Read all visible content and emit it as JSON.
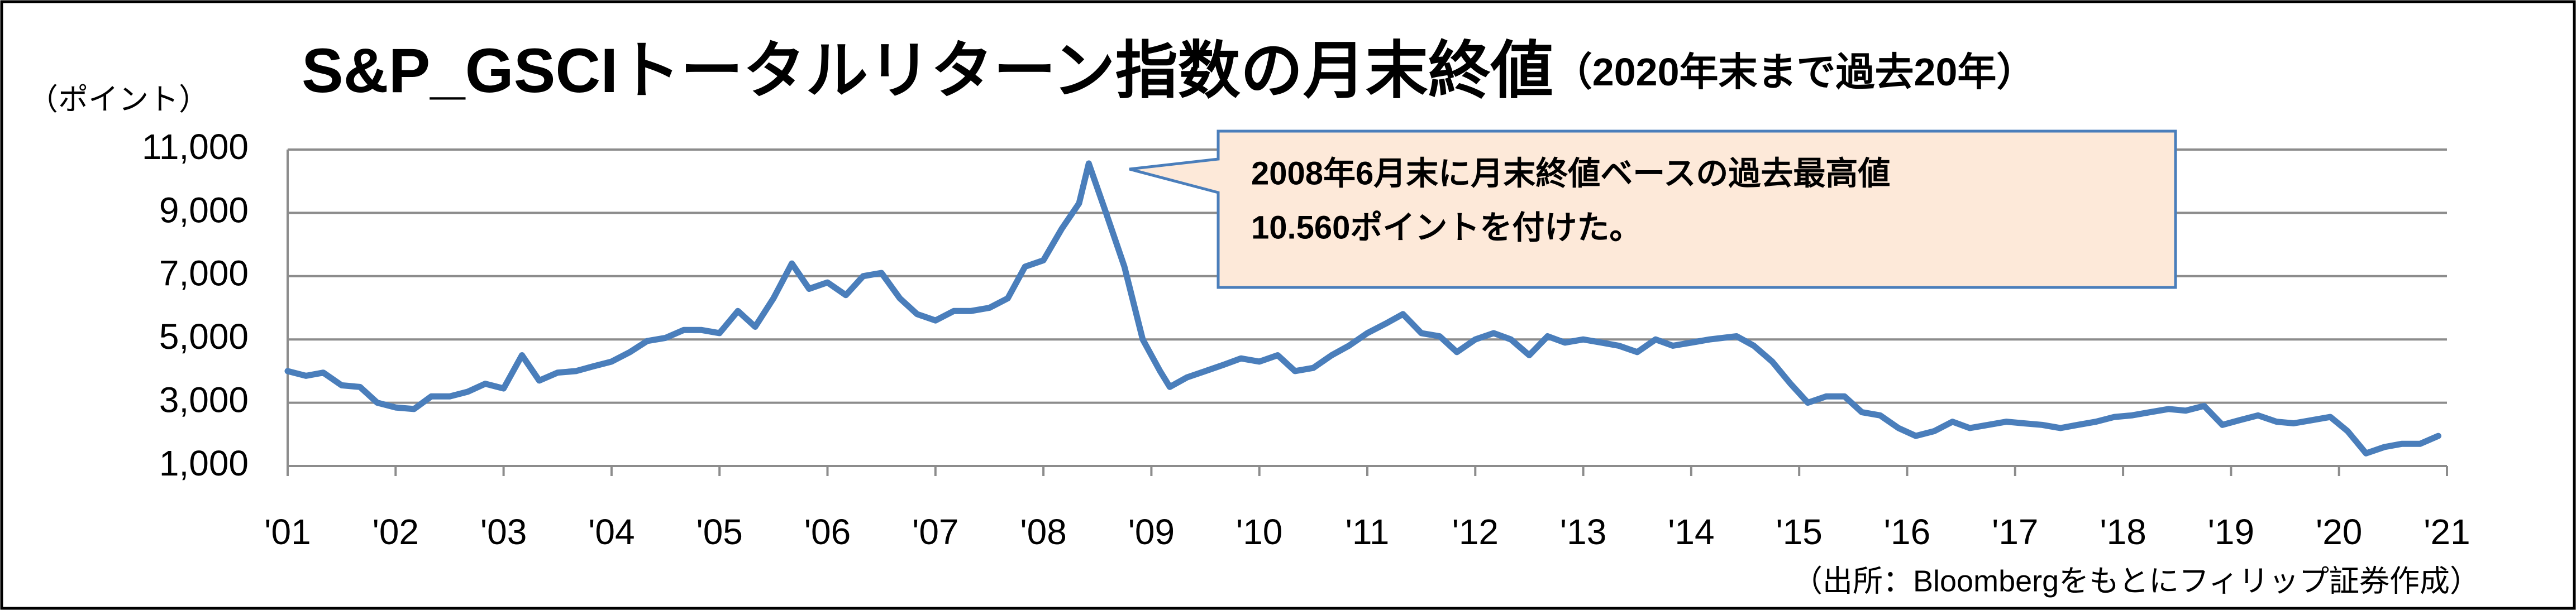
{
  "chart_data": {
    "type": "line",
    "title": "S&P_GSCIトータルリターン指数の月末終値",
    "subtitle": "（2020年末まで過去20年）",
    "y_label": "（ポイント）",
    "source": "（出所：Bloombergをもとにフィリップ証券作成）",
    "annotations": [
      "2008年6月末に月末終値ベースの過去最高値",
      "10.560ポイントを付けた。"
    ],
    "color": "#4a7ebb",
    "grid": true,
    "x": [
      2001.0,
      2001.17,
      2001.33,
      2001.5,
      2001.67,
      2001.83,
      2002.0,
      2002.17,
      2002.33,
      2002.5,
      2002.67,
      2002.83,
      2003.0,
      2003.17,
      2003.33,
      2003.5,
      2003.67,
      2003.83,
      2004.0,
      2004.17,
      2004.33,
      2004.5,
      2004.67,
      2004.83,
      2005.0,
      2005.17,
      2005.33,
      2005.5,
      2005.67,
      2005.83,
      2006.0,
      2006.17,
      2006.33,
      2006.5,
      2006.67,
      2006.83,
      2007.0,
      2007.17,
      2007.33,
      2007.5,
      2007.67,
      2007.83,
      2008.0,
      2008.17,
      2008.33,
      2008.42,
      2008.58,
      2008.75,
      2008.92,
      2009.08,
      2009.17,
      2009.33,
      2009.5,
      2009.67,
      2009.83,
      2010.0,
      2010.17,
      2010.33,
      2010.5,
      2010.67,
      2010.83,
      2011.0,
      2011.17,
      2011.33,
      2011.5,
      2011.67,
      2011.83,
      2012.0,
      2012.17,
      2012.33,
      2012.5,
      2012.67,
      2012.83,
      2013.0,
      2013.17,
      2013.33,
      2013.5,
      2013.67,
      2013.83,
      2014.0,
      2014.17,
      2014.42,
      2014.58,
      2014.75,
      2014.92,
      2015.08,
      2015.25,
      2015.42,
      2015.58,
      2015.75,
      2015.92,
      2016.08,
      2016.25,
      2016.42,
      2016.58,
      2016.75,
      2016.92,
      2017.08,
      2017.25,
      2017.42,
      2017.58,
      2017.75,
      2017.92,
      2018.08,
      2018.25,
      2018.42,
      2018.58,
      2018.75,
      2018.92,
      2019.08,
      2019.25,
      2019.42,
      2019.58,
      2019.75,
      2019.92,
      2020.08,
      2020.25,
      2020.42,
      2020.58,
      2020.75,
      2020.92
    ],
    "values": [
      4000,
      3850,
      3950,
      3550,
      3500,
      3000,
      2850,
      2800,
      3200,
      3200,
      3350,
      3600,
      3450,
      4500,
      3700,
      3950,
      4000,
      4150,
      4300,
      4600,
      4950,
      5050,
      5300,
      5300,
      5200,
      5900,
      5400,
      6300,
      7400,
      6600,
      6800,
      6400,
      7000,
      7100,
      6300,
      5800,
      5600,
      5900,
      5900,
      6000,
      6300,
      7300,
      7500,
      8500,
      9300,
      10560,
      9000,
      7300,
      5000,
      4000,
      3500,
      3800,
      4000,
      4200,
      4400,
      4300,
      4500,
      4000,
      4100,
      4500,
      4800,
      5200,
      5500,
      5800,
      5200,
      5100,
      4600,
      5000,
      5200,
      5000,
      4500,
      5100,
      4900,
      5000,
      4900,
      4800,
      4600,
      5000,
      4800,
      4900,
      5000,
      5100,
      4800,
      4300,
      3600,
      3000,
      3200,
      3200,
      2700,
      2600,
      2200,
      1950,
      2100,
      2400,
      2200,
      2300,
      2400,
      2350,
      2300,
      2200,
      2300,
      2400,
      2550,
      2600,
      2700,
      2800,
      2750,
      2900,
      2300,
      2450,
      2600,
      2400,
      2350,
      2450,
      2550,
      2100,
      1400,
      1600,
      1700,
      1700,
      1950
    ],
    "xlim": [
      2001,
      2021
    ],
    "xticks": [
      {
        "value": 2001,
        "label": "'01"
      },
      {
        "value": 2002,
        "label": "'02"
      },
      {
        "value": 2003,
        "label": "'03"
      },
      {
        "value": 2004,
        "label": "'04"
      },
      {
        "value": 2005,
        "label": "'05"
      },
      {
        "value": 2006,
        "label": "'06"
      },
      {
        "value": 2007,
        "label": "'07"
      },
      {
        "value": 2008,
        "label": "'08"
      },
      {
        "value": 2009,
        "label": "'09"
      },
      {
        "value": 2010,
        "label": "'10"
      },
      {
        "value": 2011,
        "label": "'11"
      },
      {
        "value": 2012,
        "label": "'12"
      },
      {
        "value": 2013,
        "label": "'13"
      },
      {
        "value": 2014,
        "label": "'14"
      },
      {
        "value": 2015,
        "label": "'15"
      },
      {
        "value": 2016,
        "label": "'16"
      },
      {
        "value": 2017,
        "label": "'17"
      },
      {
        "value": 2018,
        "label": "'18"
      },
      {
        "value": 2019,
        "label": "'19"
      },
      {
        "value": 2020,
        "label": "'20"
      },
      {
        "value": 2021,
        "label": "'21"
      }
    ],
    "ylim": [
      1000,
      11000
    ],
    "yticks": [
      {
        "value": 1000,
        "label": "1,000"
      },
      {
        "value": 3000,
        "label": "3,000"
      },
      {
        "value": 5000,
        "label": "5,000"
      },
      {
        "value": 7000,
        "label": "7,000"
      },
      {
        "value": 9000,
        "label": "9,000"
      },
      {
        "value": 11000,
        "label": "11,000"
      }
    ]
  }
}
